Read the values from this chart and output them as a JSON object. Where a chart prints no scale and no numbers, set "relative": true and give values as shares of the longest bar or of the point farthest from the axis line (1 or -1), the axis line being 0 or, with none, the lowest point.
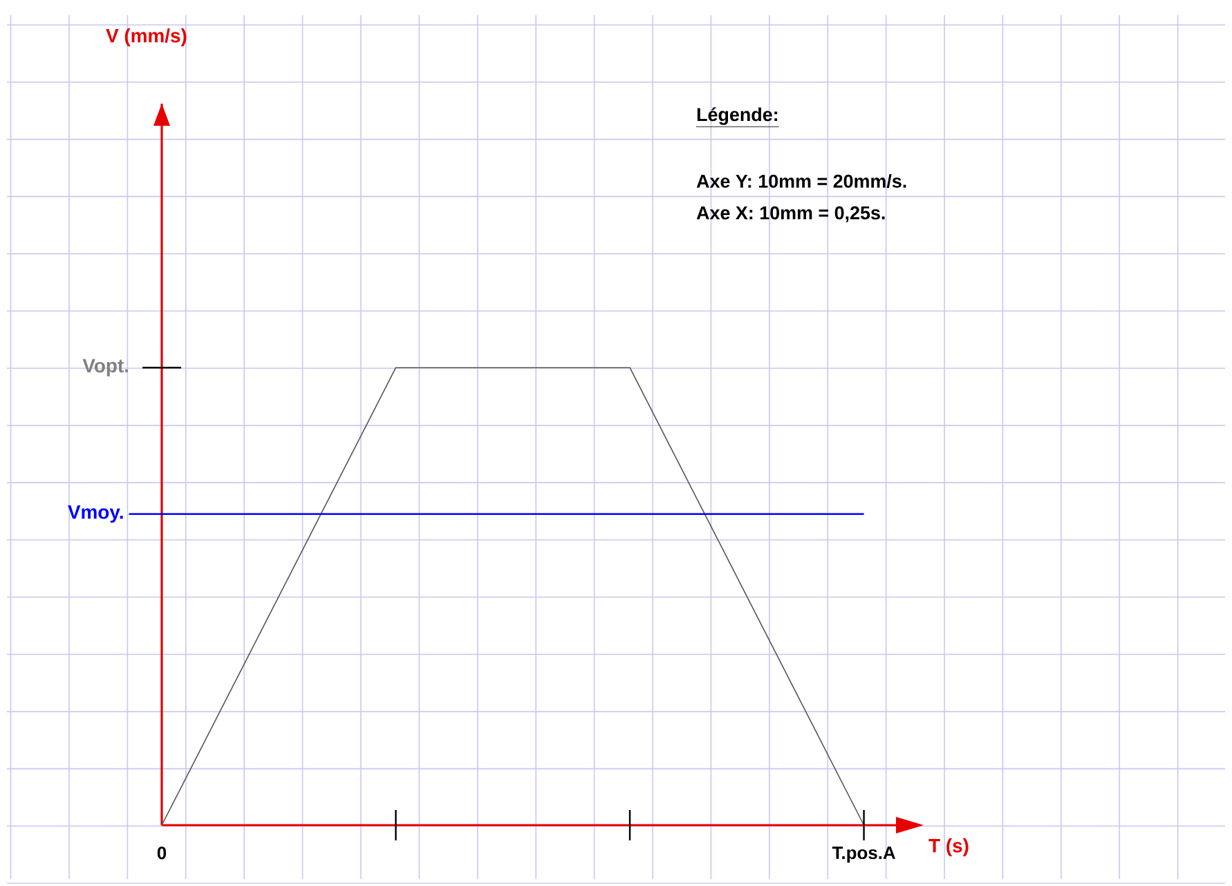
{
  "chart_data": {
    "type": "line",
    "relative": true,
    "xlabel": "T (s)",
    "categories": [
      "0",
      null,
      null,
      "T.pos.A"
    ],
    "series": [
      {
        "color": "#555555",
        "values": [
          0,
          1,
          1,
          0
        ]
      }
    ],
    "ref_lines": [
      {
        "axis": "y",
        "value": 0.68,
        "label": "Vmoy.",
        "color": "#0000ff"
      }
    ],
    "annotations": [
      "Vopt.",
      "V (mm/s)",
      "Légende:",
      "Axe Y: 10mm = 20mm/s.",
      "Axe X: 10mm = 0,25s."
    ],
    "grid": true,
    "marker": "none",
    "line_style": "solid"
  }
}
